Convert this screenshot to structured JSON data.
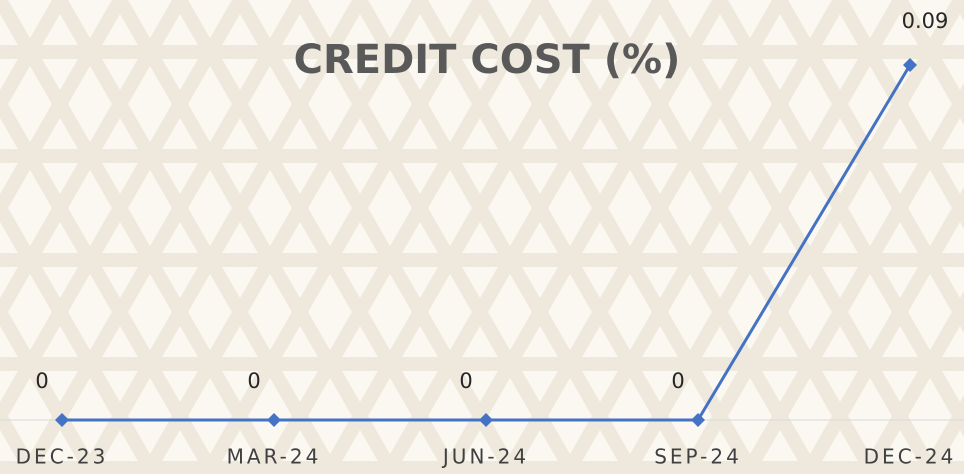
{
  "chart_data": {
    "type": "line",
    "title": "CREDIT COST (%)",
    "categories": [
      "DEC-23",
      "MAR-24",
      "JUN-24",
      "SEP-24",
      "DEC-24"
    ],
    "series": [
      {
        "name": "Credit Cost",
        "color": "#4472c4",
        "values": [
          0,
          0,
          0,
          0,
          0.09
        ]
      }
    ],
    "ylim": [
      0,
      0.09
    ]
  }
}
